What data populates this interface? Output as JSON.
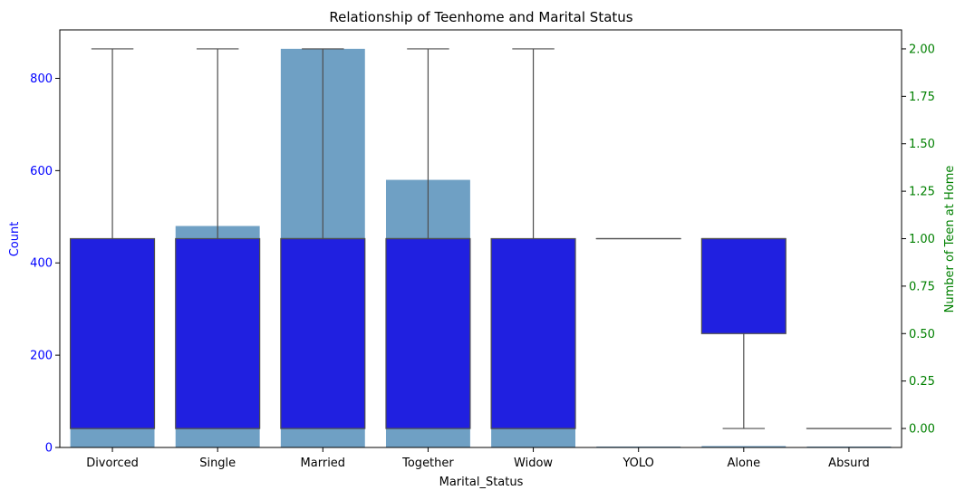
{
  "chart_data": {
    "type": "bar",
    "title": "Relationship of Teenhome and Marital Status",
    "xlabel": "Marital_Status",
    "ylabel_left": "Count",
    "ylabel_right": "Number of Teen at Home",
    "categories": [
      "Divorced",
      "Single",
      "Married",
      "Together",
      "Widow",
      "YOLO",
      "Alone",
      "Absurd"
    ],
    "bar_series": {
      "axis": "left",
      "color": "#6fa0c4",
      "values": [
        232,
        480,
        864,
        580,
        77,
        2,
        3,
        2
      ]
    },
    "box_series": {
      "axis": "right",
      "color": "#2020e0",
      "whisker_color": "#4d4d4d",
      "boxes": [
        {
          "min": 0,
          "q1": 0,
          "median": 0,
          "q3": 1,
          "max": 2
        },
        {
          "min": 0,
          "q1": 0,
          "median": 0,
          "q3": 1,
          "max": 2
        },
        {
          "min": 0,
          "q1": 0,
          "median": 1,
          "q3": 1,
          "max": 2
        },
        {
          "min": 0,
          "q1": 0,
          "median": 1,
          "q3": 1,
          "max": 2
        },
        {
          "min": 0,
          "q1": 0,
          "median": 0,
          "q3": 1,
          "max": 2
        },
        {
          "min": 1,
          "q1": 1,
          "median": 1,
          "q3": 1,
          "max": 1
        },
        {
          "min": 0,
          "q1": 0.5,
          "median": 1,
          "q3": 1,
          "max": 1
        },
        {
          "min": 0,
          "q1": 0,
          "median": 0,
          "q3": 0,
          "max": 0
        }
      ]
    },
    "ylim_left": [
      0,
      905
    ],
    "ylim_right": [
      -0.1,
      2.1
    ],
    "yticks_left": [
      0,
      200,
      400,
      600,
      800
    ],
    "yticks_left_labels": [
      "0",
      "200",
      "400",
      "600",
      "800"
    ],
    "yticks_right": [
      0,
      0.25,
      0.5,
      0.75,
      1.0,
      1.25,
      1.5,
      1.75,
      2.0
    ],
    "yticks_right_labels": [
      "0.00",
      "0.25",
      "0.50",
      "0.75",
      "1.00",
      "1.25",
      "1.50",
      "1.75",
      "2.00"
    ],
    "left_axis_color": "#0000ff",
    "right_axis_color": "#008000",
    "grid": false
  }
}
